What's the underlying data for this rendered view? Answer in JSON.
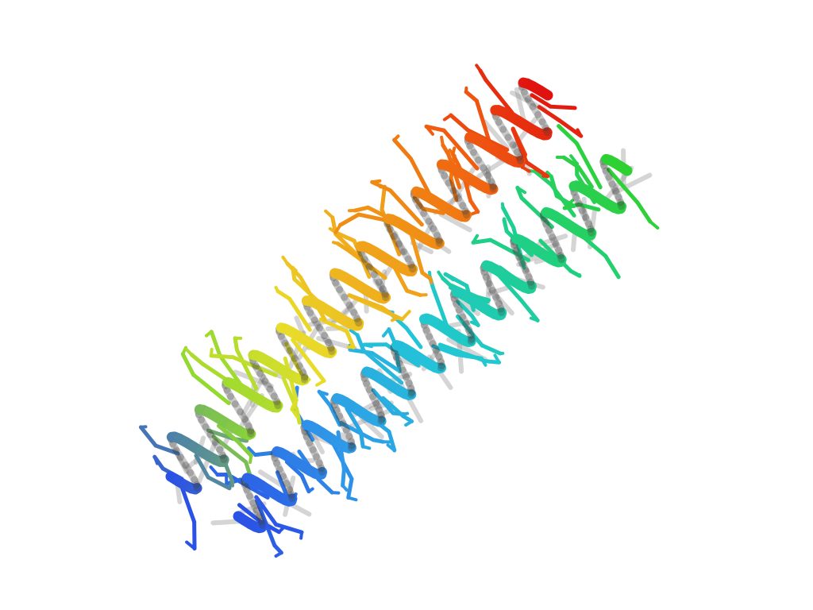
{
  "scene": {
    "subject": "helix-hairpin-cartoon",
    "colors": {
      "n_terminus": "#1f2fd6",
      "blue": "#2b52e6",
      "sky": "#2f9be8",
      "cyan": "#22c7d6",
      "teal": "#1ecf8a",
      "green": "#2fd12f",
      "lime": "#8fd930",
      "yellow": "#e8e02a",
      "amber": "#f0b21e",
      "orange": "#f08a14",
      "red_orange": "#f05a10",
      "c_terminus": "#e01010",
      "shadow": "#8a8a8a"
    },
    "helix_a_gradient": [
      "#2b52e6",
      "#8fd930",
      "#e8e02a",
      "#f0b21e",
      "#f08a14",
      "#f05a10",
      "#e01010"
    ],
    "helix_b_gradient": [
      "#2b52e6",
      "#2f9be8",
      "#22c7d6",
      "#1ecf8a",
      "#2fd12f"
    ]
  }
}
